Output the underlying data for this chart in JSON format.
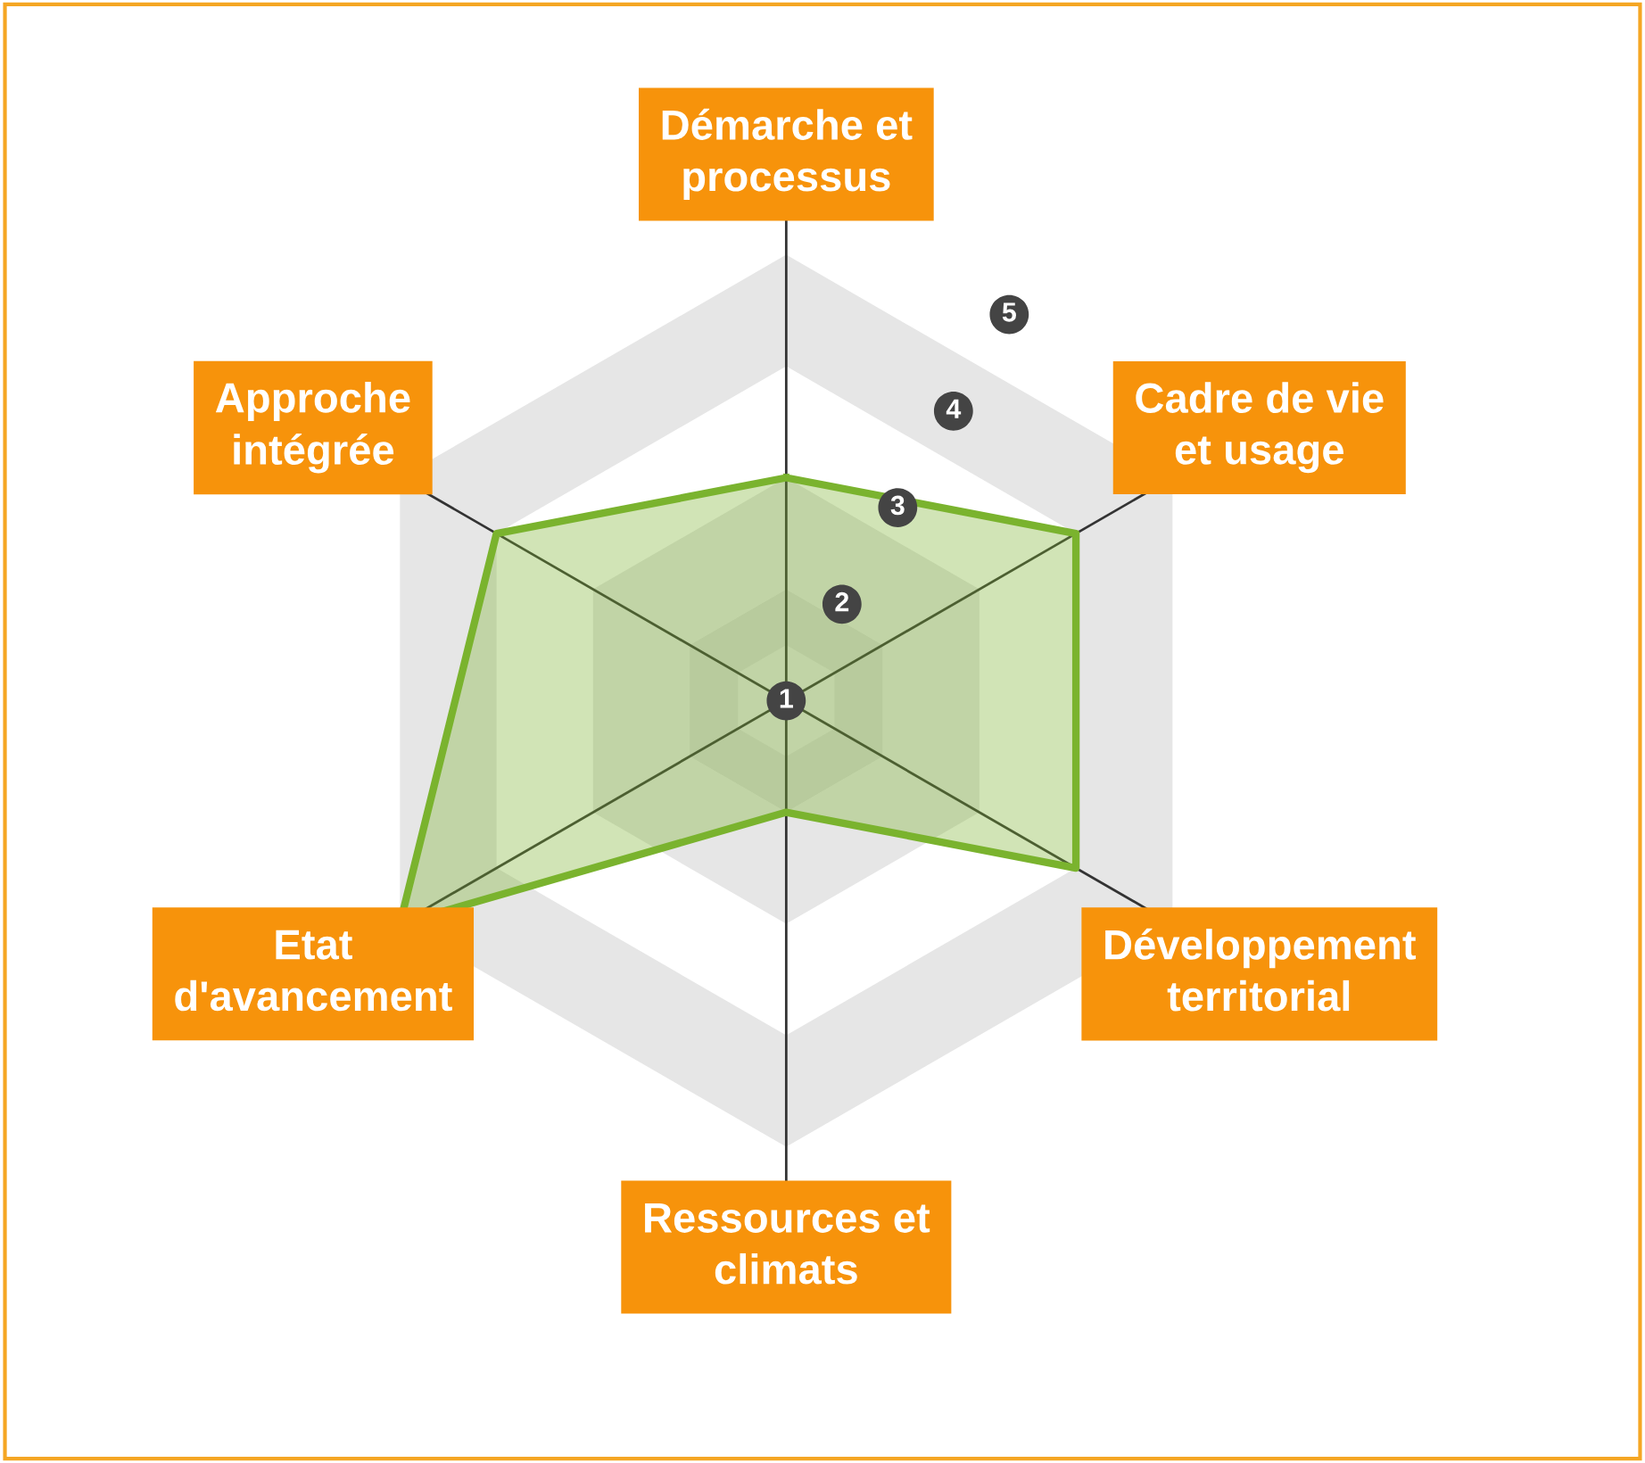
{
  "chart_data": {
    "type": "radar",
    "categories": [
      "Démarche et processus",
      "Cadre de vie et usage",
      "Développement territorial",
      "Ressources et climats",
      "Etat d'avancement",
      "Approche intégrée"
    ],
    "series": [
      {
        "color": "#7ab32e",
        "values": [
          3,
          4,
          4,
          2,
          5,
          4
        ]
      }
    ],
    "ylim": [
      1,
      5
    ],
    "yticks": [
      1,
      2,
      3,
      4,
      5
    ]
  }
}
